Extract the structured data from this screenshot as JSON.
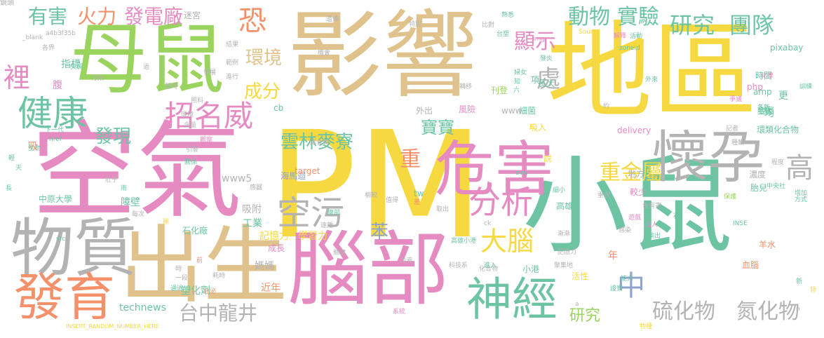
{
  "colors": {
    "yellow": "#f6d940",
    "pink": "#e58bc2",
    "tan": "#e0c38c",
    "green": "#9ad45e",
    "teal": "#6cc4a3",
    "gray": "#b3b3b3",
    "orange": "#f5916a",
    "blue": "#8fa3cc"
  },
  "words": [
    {
      "text": "PM",
      "color": "yellow"
    },
    {
      "text": "空氣",
      "color": "pink"
    },
    {
      "text": "影響",
      "color": "tan"
    },
    {
      "text": "地區",
      "color": "yellow"
    },
    {
      "text": "母鼠",
      "color": "green"
    },
    {
      "text": "小鼠",
      "color": "teal"
    },
    {
      "text": "出生",
      "color": "tan"
    },
    {
      "text": "腦部",
      "color": "pink"
    },
    {
      "text": "物質",
      "color": "gray"
    },
    {
      "text": "危害",
      "color": "pink"
    },
    {
      "text": "懷孕",
      "color": "gray"
    },
    {
      "text": "發育",
      "color": "orange"
    },
    {
      "text": "神經",
      "color": "teal"
    },
    {
      "text": "健康",
      "color": "teal"
    },
    {
      "text": "招名威",
      "color": "pink"
    },
    {
      "text": "空污",
      "color": "gray"
    },
    {
      "text": "分析",
      "color": "pink"
    },
    {
      "text": "大腦",
      "color": "yellow"
    },
    {
      "text": "研究",
      "color": "teal"
    },
    {
      "text": "團隊",
      "color": "teal"
    },
    {
      "text": "動物",
      "color": "teal"
    },
    {
      "text": "實驗",
      "color": "teal"
    },
    {
      "text": "顯示",
      "color": "pink"
    },
    {
      "text": "發電廠",
      "color": "pink"
    },
    {
      "text": "火力",
      "color": "orange"
    },
    {
      "text": "有害",
      "color": "teal"
    },
    {
      "text": "雲林麥寮",
      "color": "teal"
    },
    {
      "text": "寶寶",
      "color": "teal"
    },
    {
      "text": "重金屬",
      "color": "yellow"
    },
    {
      "text": "台中龍井",
      "color": "gray"
    },
    {
      "text": "硫化物",
      "color": "gray"
    },
    {
      "text": "氮化物",
      "color": "gray"
    },
    {
      "text": "研究",
      "color": "green"
    },
    {
      "text": "成分",
      "color": "yellow"
    },
    {
      "text": "環境",
      "color": "tan"
    },
    {
      "text": "發現",
      "color": "teal"
    },
    {
      "text": "高",
      "color": "gray"
    },
    {
      "text": "中",
      "color": "blue"
    },
    {
      "text": "苯",
      "color": "blue"
    },
    {
      "text": "恐",
      "color": "orange"
    },
    {
      "text": "裡",
      "color": "pink"
    },
    {
      "text": "處",
      "color": "gray"
    },
    {
      "text": "重",
      "color": "orange"
    },
    {
      "text": "記憶力",
      "color": "yellow"
    },
    {
      "text": "學習力",
      "color": "yellow"
    },
    {
      "text": "technews",
      "color": "teal"
    },
    {
      "text": "塑化劑",
      "color": "teal"
    },
    {
      "text": "近年",
      "color": "orange"
    },
    {
      "text": "媽媽",
      "color": "gray"
    },
    {
      "text": "吸附",
      "color": "gray"
    },
    {
      "text": "工業",
      "color": "teal"
    },
    {
      "text": "www5",
      "color": "gray"
    },
    {
      "text": "障壁",
      "color": "teal"
    },
    {
      "text": "指標",
      "color": "teal"
    },
    {
      "text": "迷宮",
      "color": "gray"
    },
    {
      "text": "外出",
      "color": "gray"
    },
    {
      "text": "風險",
      "color": "pink"
    },
    {
      "text": "細菌",
      "color": "teal"
    },
    {
      "text": "www",
      "color": "gray"
    },
    {
      "text": "吸入",
      "color": "yellow"
    },
    {
      "text": "說",
      "color": "yellow"
    },
    {
      "text": "delivery",
      "color": "pink"
    },
    {
      "text": "地方",
      "color": "gray"
    },
    {
      "text": "濃度",
      "color": "gray"
    },
    {
      "text": "較少",
      "color": "pink"
    },
    {
      "text": "高雄",
      "color": "teal"
    },
    {
      "text": "胎兒",
      "color": "teal"
    },
    {
      "text": "金屬",
      "color": "teal"
    },
    {
      "text": "環類化合物",
      "color": "teal"
    },
    {
      "text": "羊水",
      "color": "orange"
    },
    {
      "text": "血腦",
      "color": "orange"
    },
    {
      "text": "活性",
      "color": "yellow"
    },
    {
      "text": "小港",
      "color": "teal"
    },
    {
      "text": "時間",
      "color": "teal"
    },
    {
      "text": "php",
      "color": "pink"
    },
    {
      "text": "amp",
      "color": "teal"
    },
    {
      "text": "長大",
      "color": "teal"
    },
    {
      "text": "中原大學",
      "color": "teal"
    },
    {
      "text": "成長",
      "color": "pink"
    },
    {
      "text": "海馬迴",
      "color": "blue"
    },
    {
      "text": "石化廠",
      "color": "teal"
    },
    {
      "text": "target",
      "color": "orange"
    },
    {
      "text": "刊登",
      "color": "green"
    },
    {
      "text": "pixabay",
      "color": "teal"
    },
    {
      "text": "INSERT_RANDOM_NUMBER_HERE",
      "color": "yellow"
    },
    {
      "text": "_blank",
      "color": "gray"
    },
    {
      "text": "a4b3f35b",
      "color": "gray"
    },
    {
      "text": "Source",
      "color": "yellow"
    },
    {
      "text": "zoneid",
      "color": "teal"
    },
    {
      "text": "img",
      "color": "pink"
    },
    {
      "text": "href",
      "color": "teal"
    },
    {
      "text": "src",
      "color": "teal"
    },
    {
      "text": "cb",
      "color": "teal"
    },
    {
      "text": "tw",
      "color": "teal"
    },
    {
      "text": "avw",
      "color": "teal"
    },
    {
      "text": "ck",
      "color": "gray"
    },
    {
      "text": "INSE",
      "color": "teal"
    },
    {
      "text": "下一代",
      "color": "teal"
    },
    {
      "text": "腹",
      "color": "pink"
    },
    {
      "text": "年",
      "color": "orange"
    },
    {
      "text": "均",
      "color": "teal"
    },
    {
      "text": "更",
      "color": "teal"
    },
    {
      "text": "吸",
      "color": "orange"
    },
    {
      "text": "項",
      "color": "teal"
    },
    {
      "text": "知",
      "color": "teal"
    },
    {
      "text": "六",
      "color": "teal"
    },
    {
      "text": "石",
      "color": "teal"
    },
    {
      "text": "新",
      "color": "teal"
    },
    {
      "text": "特",
      "color": "yellow"
    },
    {
      "text": "前",
      "color": "orange"
    },
    {
      "text": "一段",
      "color": "gray"
    },
    {
      "text": "通過",
      "color": "teal"
    },
    {
      "text": "分泌",
      "color": "orange"
    },
    {
      "text": "系統",
      "color": "pink"
    },
    {
      "text": "關鍵",
      "color": "gray"
    },
    {
      "text": "血液",
      "color": "gray"
    },
    {
      "text": "科技系",
      "color": "gray"
    },
    {
      "text": "化合物",
      "color": "gray"
    },
    {
      "text": "高雄小港",
      "color": "teal"
    },
    {
      "text": "進入",
      "color": "teal"
    },
    {
      "text": "聚集地",
      "color": "gray"
    },
    {
      "text": "證實",
      "color": "teal"
    },
    {
      "text": "能力",
      "color": "teal"
    },
    {
      "text": "記憶力",
      "color": "gray"
    },
    {
      "text": "漸漸",
      "color": "gray"
    },
    {
      "text": "成人",
      "color": "pink"
    },
    {
      "text": "含有害",
      "color": "gray"
    },
    {
      "text": "輸出",
      "color": "teal"
    },
    {
      "text": "中央社",
      "color": "teal"
    },
    {
      "text": "方式",
      "color": "teal"
    },
    {
      "text": "程度",
      "color": "gray"
    },
    {
      "text": "增加",
      "color": "teal"
    },
    {
      "text": "保護",
      "color": "green"
    },
    {
      "text": "重視",
      "color": "gray"
    },
    {
      "text": "細小",
      "color": "teal"
    },
    {
      "text": "感染",
      "color": "gray"
    },
    {
      "text": "遊戲",
      "color": "pink"
    },
    {
      "text": "爭議",
      "color": "pink"
    },
    {
      "text": "地點",
      "color": "teal"
    },
    {
      "text": "各新",
      "color": "teal"
    },
    {
      "text": "記者",
      "color": "gray"
    },
    {
      "text": "種類",
      "color": "gray"
    },
    {
      "text": "化學",
      "color": "pink"
    },
    {
      "text": "訓練",
      "color": "teal"
    },
    {
      "text": "外來",
      "color": "teal"
    },
    {
      "text": "解釋",
      "color": "pink"
    },
    {
      "text": "活動",
      "color": "teal"
    },
    {
      "text": "台塑",
      "color": "teal"
    },
    {
      "text": "發炎",
      "color": "teal"
    },
    {
      "text": "婦女",
      "color": "teal"
    },
    {
      "text": "轉移",
      "color": "gray"
    },
    {
      "text": "機會",
      "color": "gray"
    },
    {
      "text": "遺傳",
      "color": "gray"
    },
    {
      "text": "比對",
      "color": "gray"
    },
    {
      "text": "熟悉",
      "color": "teal"
    },
    {
      "text": "腹部",
      "color": "teal"
    },
    {
      "text": "關係",
      "color": "teal"
    },
    {
      "text": "生物",
      "color": "teal"
    },
    {
      "text": "引發",
      "color": "gray"
    },
    {
      "text": "副食物",
      "color": "gray"
    },
    {
      "text": "輕",
      "color": "teal"
    },
    {
      "text": "天",
      "color": "teal"
    },
    {
      "text": "長",
      "color": "teal"
    },
    {
      "text": "雨",
      "color": "teal"
    },
    {
      "text": "肚子",
      "color": "gray"
    },
    {
      "text": "麗",
      "color": "yellow"
    },
    {
      "text": "感器",
      "color": "gray"
    },
    {
      "text": "每次",
      "color": "gray"
    },
    {
      "text": "失調",
      "color": "teal"
    },
    {
      "text": "污染",
      "color": "gray"
    },
    {
      "text": "各界",
      "color": "gray"
    },
    {
      "text": "過",
      "color": "gray"
    },
    {
      "text": "特別",
      "color": "gray"
    },
    {
      "text": "遠離",
      "color": "gray"
    },
    {
      "text": "相較",
      "color": "gray"
    },
    {
      "text": "值得",
      "color": "gray"
    },
    {
      "text": "差",
      "color": "orange"
    },
    {
      "text": "取出",
      "color": "gray"
    },
    {
      "text": "約",
      "color": "gray"
    },
    {
      "text": "n",
      "color": "gray"
    },
    {
      "text": "a",
      "color": "gray"
    },
    {
      "text": "物種",
      "color": "yellow"
    },
    {
      "text": "時",
      "color": "gray"
    },
    {
      "text": "耗時",
      "color": "gray"
    },
    {
      "text": "環境",
      "color": "gray"
    },
    {
      "text": "暫時",
      "color": "gray"
    },
    {
      "text": "照料",
      "color": "gray"
    },
    {
      "text": "含量",
      "color": "gray"
    },
    {
      "text": "觀察",
      "color": "pink"
    },
    {
      "text": "發展",
      "color": "gray"
    },
    {
      "text": "結果",
      "color": "gray"
    },
    {
      "text": "範例",
      "color": "gray"
    },
    {
      "text": "進行",
      "color": "gray"
    },
    {
      "text": "鏡頭",
      "color": "gray"
    }
  ]
}
